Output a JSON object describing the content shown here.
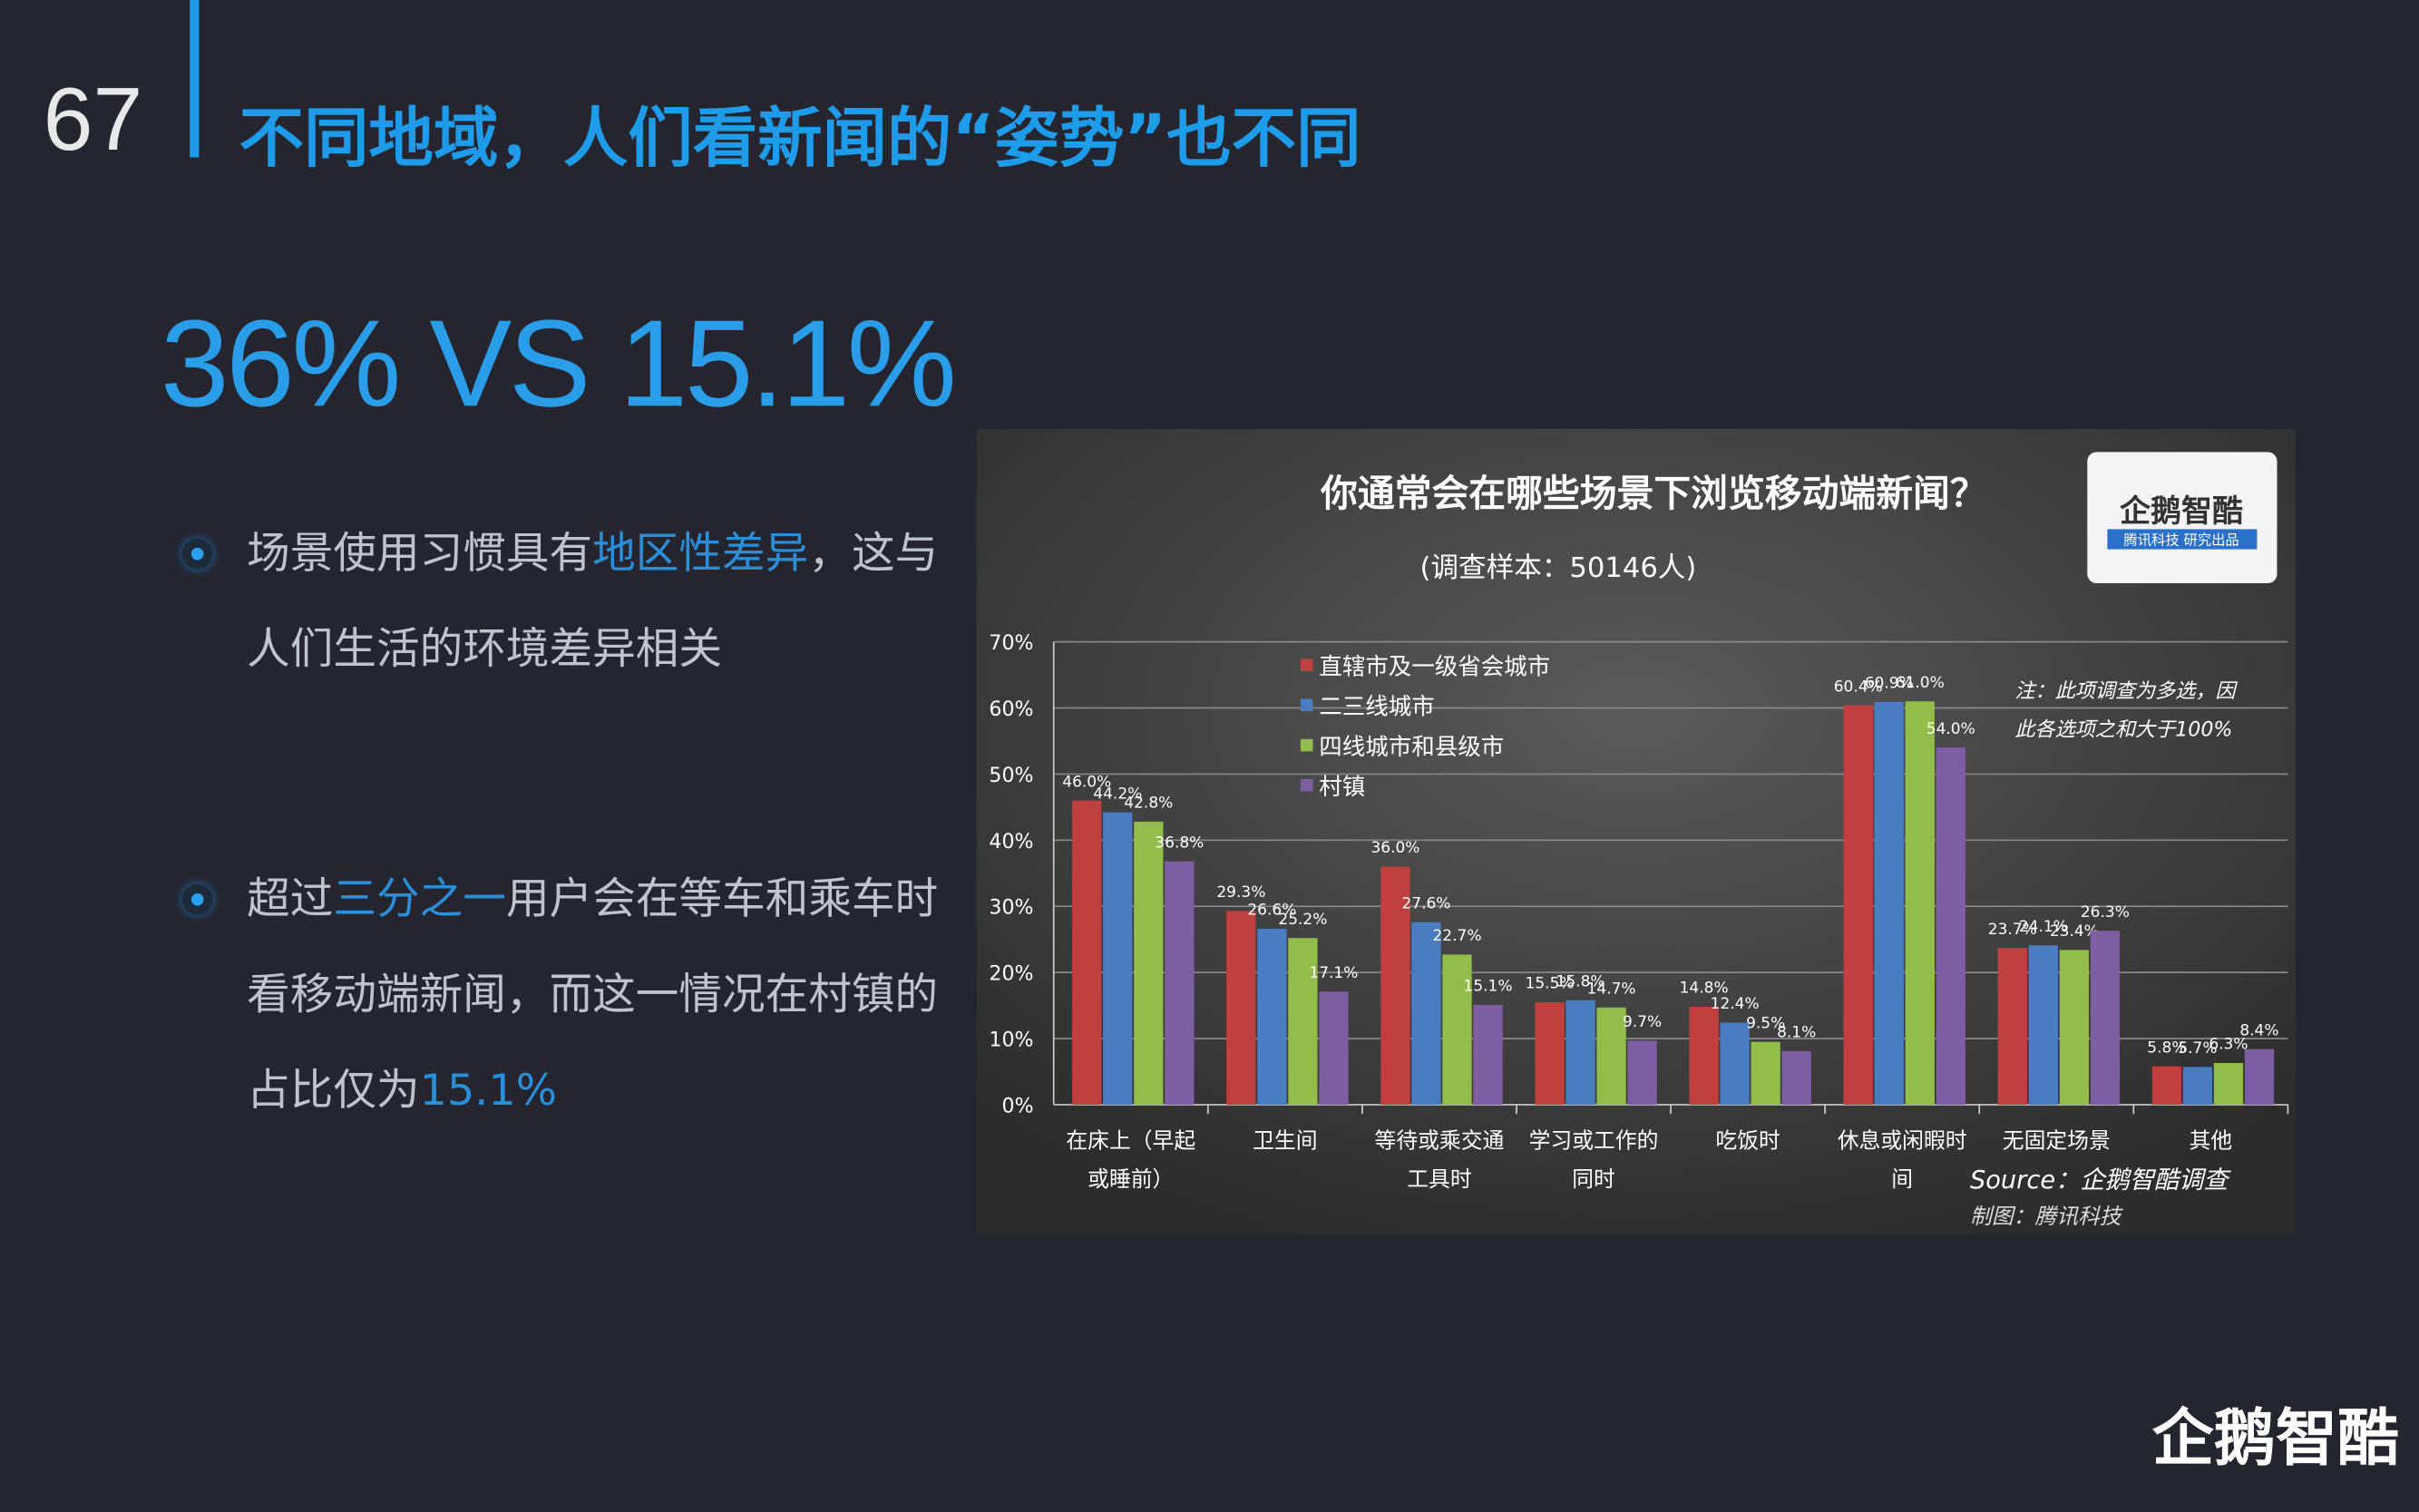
{
  "page_number": "67",
  "title": "不同地域，人们看新闻的“姿势”也不同",
  "headline": "36% VS 15.1%",
  "bullets": [
    {
      "parts": [
        {
          "text": "场景使用习惯具有"
        },
        {
          "text": "地区性差异",
          "highlight": true
        },
        {
          "text": "，这与人们生活的环境差异相关"
        }
      ]
    },
    {
      "parts": [
        {
          "text": "超过"
        },
        {
          "text": "三分之一",
          "highlight": true
        },
        {
          "text": "用户会在等车和乘车时看移动端新闻，而这一情况在村镇的占比仅为"
        },
        {
          "text": "15.1%",
          "highlight": true
        }
      ]
    }
  ],
  "footer_logo": "企鹅智酷",
  "chart_data": {
    "type": "bar",
    "title": "你通常会在哪些场景下浏览移动端新闻？",
    "subtitle": "(调查样本：50146人)",
    "logo": {
      "name": "企鹅智酷",
      "tagline": "腾讯科技 研究出品"
    },
    "annotation_lines": [
      "注：此项调查为多选，因",
      "此各选项之和大于100%"
    ],
    "source": "Source：企鹅智酷调查",
    "credit": "制图：腾讯科技",
    "categories": [
      "在床上（早起或睡前）",
      "卫生间",
      "等待或乘交通工具时",
      "学习或工作的同时",
      "吃饭时",
      "休息或闲暇时间",
      "无固定场景",
      "其他"
    ],
    "series": [
      {
        "name": "直辖市及一级省会城市",
        "color": "#c0403f",
        "values": [
          46.0,
          29.3,
          36.0,
          15.5,
          14.8,
          60.4,
          23.7,
          5.8
        ],
        "value_labels": [
          "46.0%",
          "29.3%",
          "36.0%",
          "15.5%",
          "14.8%",
          "60.4%",
          "23.7%",
          "5.8%"
        ]
      },
      {
        "name": "二三线城市",
        "color": "#4a7cc0",
        "values": [
          44.2,
          26.6,
          27.6,
          15.8,
          12.4,
          60.9,
          24.1,
          5.7
        ],
        "value_labels": [
          "44.2%",
          "26.6%",
          "27.6%",
          "15.8%",
          "12.4%",
          "60.9%",
          "24.1%",
          "5.7%"
        ]
      },
      {
        "name": "四线城市和县级市",
        "color": "#93bd4a",
        "values": [
          42.8,
          25.2,
          22.7,
          14.7,
          9.5,
          61.0,
          23.4,
          6.3
        ],
        "value_labels": [
          "42.8%",
          "25.2%",
          "22.7%",
          "14.7%",
          "9.5%",
          "61.0%",
          "23.4%",
          "6.3%"
        ]
      },
      {
        "name": "村镇",
        "color": "#7e5ea3",
        "values": [
          36.8,
          17.1,
          15.1,
          9.7,
          8.1,
          54.0,
          26.3,
          8.4
        ],
        "value_labels": [
          "36.8%",
          "17.1%",
          "15.1%",
          "9.7%",
          "8.1%",
          "54.0%",
          "26.3%",
          "8.4%"
        ]
      }
    ],
    "ylim": [
      0,
      70
    ],
    "yticks": [
      {
        "value": 0,
        "label": "0%"
      },
      {
        "value": 10,
        "label": "10%"
      },
      {
        "value": 20,
        "label": "20%"
      },
      {
        "value": 30,
        "label": "30%"
      },
      {
        "value": 40,
        "label": "40%"
      },
      {
        "value": 50,
        "label": "50%"
      },
      {
        "value": 60,
        "label": "60%"
      },
      {
        "value": 70,
        "label": "70%"
      }
    ],
    "grid": true
  }
}
